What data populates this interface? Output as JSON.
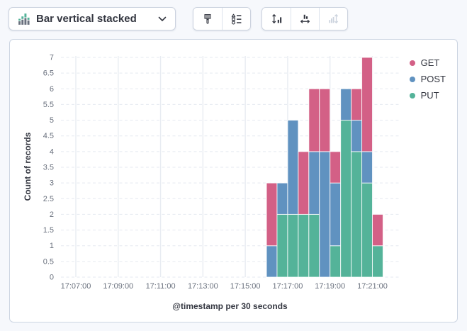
{
  "toolbar": {
    "chart_type": {
      "label": "Bar vertical stacked"
    },
    "style_buttons": [
      {
        "icon": "brush-icon"
      },
      {
        "icon": "values-icon"
      }
    ],
    "fit_buttons": [
      {
        "icon": "fit-vertical-axis-icon",
        "disabled": false
      },
      {
        "icon": "fit-horizontal-axis-icon",
        "disabled": false
      },
      {
        "icon": "collapse-vertical-axis-icon",
        "disabled": true
      }
    ]
  },
  "chart_data": {
    "type": "bar",
    "stacked": true,
    "orientation": "vertical",
    "title": "",
    "xlabel": "@timestamp per 30 seconds",
    "ylabel": "Count of records",
    "ylim": [
      0,
      7
    ],
    "y_tick_labels": [
      "0",
      "0.5",
      "1",
      "1.5",
      "2",
      "2.5",
      "3",
      "3.5",
      "4",
      "4.5",
      "5",
      "5.5",
      "6",
      "6.5",
      "7"
    ],
    "x_tick_labels": [
      "17:07:00",
      "17:09:00",
      "17:11:00",
      "17:13:00",
      "17:15:00",
      "17:17:00",
      "17:19:00",
      "17:21:00"
    ],
    "bin_seconds": 30,
    "categories": [
      "17:16:00",
      "17:16:30",
      "17:17:00",
      "17:17:30",
      "17:18:00",
      "17:18:30",
      "17:19:00",
      "17:19:30",
      "17:20:00",
      "17:20:30",
      "17:21:00"
    ],
    "stack_order_bottom_to_top": [
      "PUT",
      "POST",
      "GET"
    ],
    "series": [
      {
        "name": "GET",
        "color": "#d36086",
        "values": [
          2,
          0,
          0,
          2,
          2,
          2,
          1,
          0,
          1,
          3,
          1
        ]
      },
      {
        "name": "POST",
        "color": "#6092c0",
        "values": [
          1,
          1,
          3,
          0,
          2,
          4,
          2,
          1,
          1,
          1,
          0
        ]
      },
      {
        "name": "PUT",
        "color": "#54b399",
        "values": [
          0,
          2,
          2,
          2,
          2,
          0,
          1,
          5,
          4,
          3,
          1
        ]
      }
    ],
    "legend": {
      "position": "top-right",
      "items": [
        "GET",
        "POST",
        "PUT"
      ]
    },
    "grid": {
      "horizontal": "dashed",
      "vertical": "solid"
    }
  },
  "colors": {
    "page_bg": "#f6f8fc",
    "panel_bg": "#ffffff",
    "panel_border": "#ccd5e2",
    "text_primary": "#343741",
    "text_tick": "#69707d",
    "grid_horizontal": "#e5e9f0",
    "grid_vertical": "#e8ecf2",
    "bar_stroke": "rgba(255,255,255,0.8)",
    "disabled_icon": "#ccd3de",
    "icon_green": "#54b399",
    "icon_gray": "#69707d"
  }
}
